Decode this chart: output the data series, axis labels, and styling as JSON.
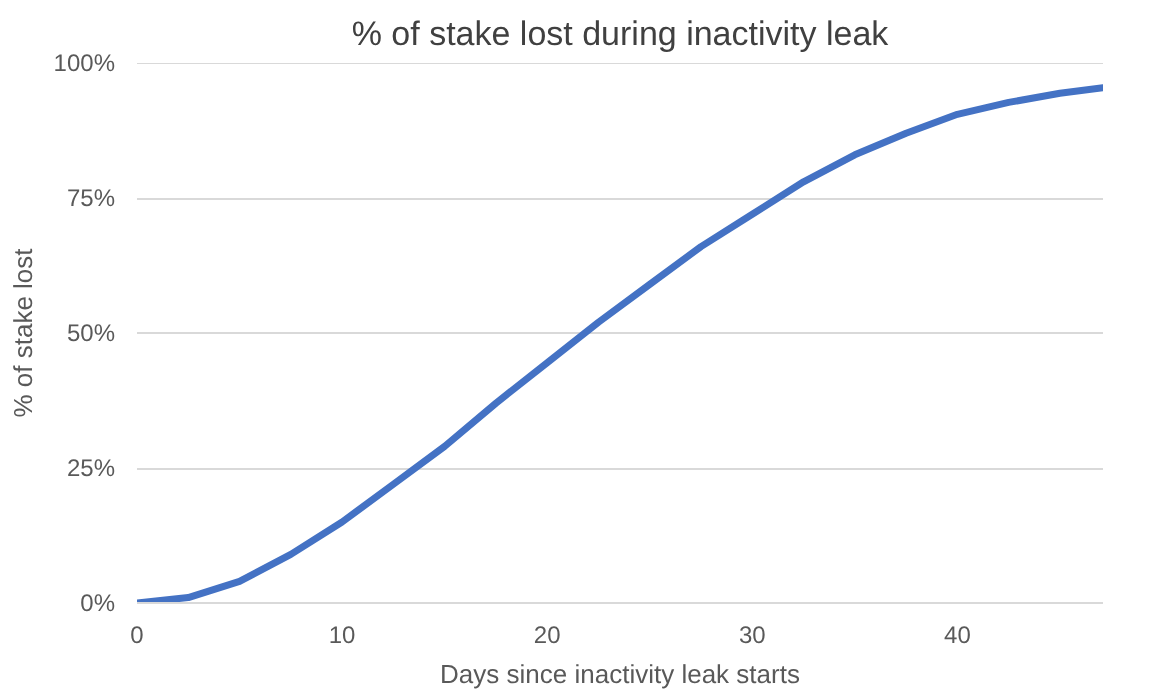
{
  "chart_data": {
    "type": "line",
    "title": "% of stake lost during inactivity leak",
    "xlabel": "Days since inactivity leak starts",
    "ylabel": "% of stake lost",
    "x": [
      0,
      2.5,
      5,
      7.5,
      10,
      12.5,
      15,
      17.5,
      20,
      22.5,
      25,
      27.5,
      30,
      32.5,
      35,
      37.5,
      40,
      42.5,
      45,
      47.1
    ],
    "series": [
      {
        "color": "#4472c4",
        "values": [
          0,
          1,
          4,
          9,
          15,
          22,
          29,
          37,
          44.5,
          52,
          59,
          66,
          72,
          78,
          83,
          87,
          90.5,
          92.7,
          94.4,
          95.4
        ]
      }
    ],
    "xlim": [
      0,
      47.1
    ],
    "ylim": [
      0,
      100
    ],
    "xticks": [
      0,
      10,
      20,
      30,
      40
    ],
    "yticks": [
      {
        "value": 0,
        "label": "0%"
      },
      {
        "value": 25,
        "label": "25%"
      },
      {
        "value": 50,
        "label": "50%"
      },
      {
        "value": 75,
        "label": "75%"
      },
      {
        "value": 100,
        "label": "100%"
      }
    ],
    "grid": "y",
    "marker": "none",
    "line_style": "solid"
  }
}
